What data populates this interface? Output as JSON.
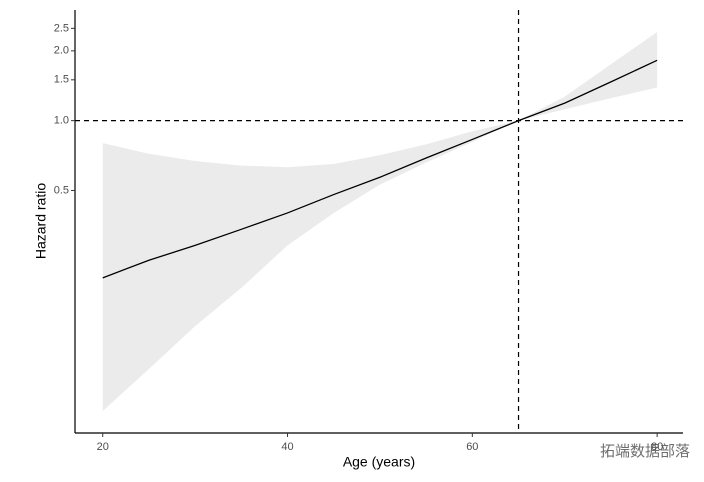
{
  "chart_data": {
    "type": "line",
    "x_label": "Age (years)",
    "y_label": "Hazard ratio",
    "x": [
      20,
      25,
      30,
      35,
      40,
      45,
      50,
      55,
      60,
      65,
      70,
      75,
      80
    ],
    "values": [
      0.21,
      0.25,
      0.29,
      0.34,
      0.4,
      0.48,
      0.57,
      0.69,
      0.83,
      1.0,
      1.19,
      1.47,
      1.82
    ],
    "ci_lower": [
      0.056,
      0.085,
      0.13,
      0.19,
      0.29,
      0.4,
      0.53,
      0.66,
      0.81,
      1.0,
      1.12,
      1.25,
      1.39
    ],
    "ci_upper": [
      0.8,
      0.72,
      0.67,
      0.64,
      0.63,
      0.65,
      0.71,
      0.79,
      0.9,
      1.0,
      1.27,
      1.75,
      2.41
    ],
    "color": "#000000",
    "band_color": "#ebebeb",
    "xlim": [
      17,
      82.8
    ],
    "ylim": [
      0.045,
      3.0
    ],
    "log_y": true,
    "xticks": [
      20,
      40,
      60,
      80
    ],
    "yticks": [
      0.5,
      {
        "value": 1,
        "label": "1.0"
      },
      1.5,
      {
        "value": 2,
        "label": "2.0"
      },
      2.5
    ],
    "hline": 1,
    "vline": 65,
    "watermark": "拓端数据部落"
  }
}
